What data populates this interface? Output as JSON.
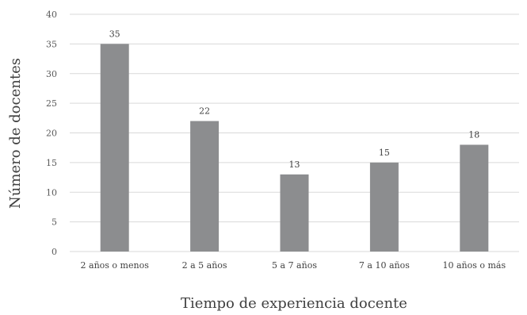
{
  "chart_data": {
    "type": "bar",
    "categories": [
      "2 años o menos",
      "2 a 5 años",
      "5 a 7 años",
      "7 a 10 años",
      "10 años o más"
    ],
    "values": [
      35,
      22,
      13,
      15,
      18
    ],
    "title": "",
    "xlabel": "Tiempo de experiencia docente",
    "ylabel": "Número de docentes",
    "ylim": [
      0,
      40
    ],
    "yticks": [
      0,
      5,
      10,
      15,
      20,
      25,
      30,
      35,
      40
    ],
    "grid": true,
    "legend": "none",
    "bar_color": "#8c8d8f",
    "grid_color": "#d9d9d9"
  }
}
